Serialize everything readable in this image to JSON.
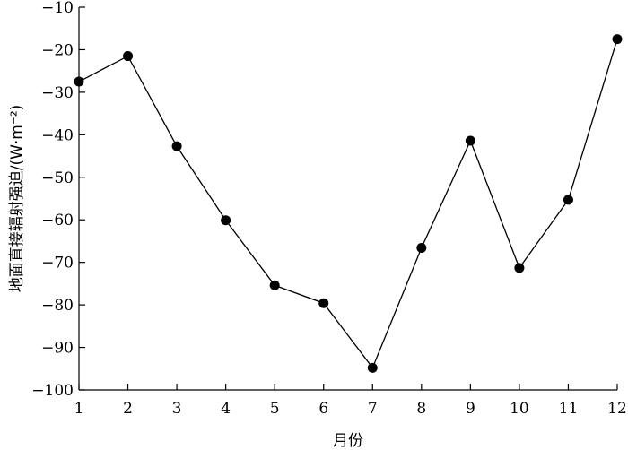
{
  "chart_data": {
    "type": "line",
    "title": "",
    "xlabel": "月份",
    "ylabel": "地面直接辐射强迫/(W·m⁻²)",
    "x": [
      1,
      2,
      3,
      4,
      5,
      6,
      7,
      8,
      9,
      10,
      11,
      12
    ],
    "series": [
      {
        "values": [
          -27.5,
          -21.5,
          -42.7,
          -60.1,
          -75.4,
          -79.6,
          -94.8,
          -66.6,
          -41.4,
          -71.3,
          -55.3,
          -17.5
        ]
      }
    ],
    "xlim": [
      1,
      12
    ],
    "ylim": [
      -100,
      -10
    ],
    "yticks": [
      -10,
      -20,
      -30,
      -40,
      -50,
      -60,
      -70,
      -80,
      -90,
      -100
    ],
    "xticks": [
      1,
      2,
      3,
      4,
      5,
      6,
      7,
      8,
      9,
      10,
      11,
      12
    ],
    "grid": false,
    "legend": "none",
    "colors": {
      "line": "#000000",
      "marker": "#000000"
    }
  }
}
